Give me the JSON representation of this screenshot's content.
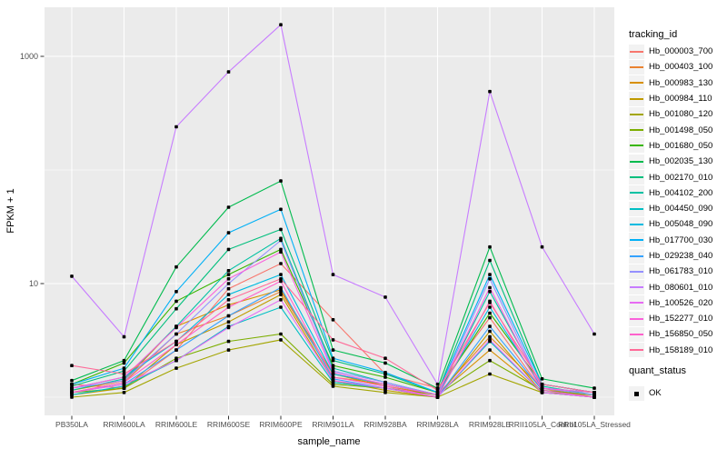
{
  "figure": {
    "background": "#FFFFFF",
    "panel_background": "#EBEBEB",
    "gridline_color": "#FFFFFF",
    "tick_color": "#333333",
    "tick_label_color": "#4D4D4D"
  },
  "axes": {
    "x": {
      "title": "sample_name"
    },
    "y": {
      "title": "FPKM + 1",
      "tick_labels": [
        "1000",
        "10"
      ],
      "scale": "log10"
    }
  },
  "legend": {
    "tracking_title": "tracking_id",
    "quant_title": "quant_status",
    "quant_items": [
      {
        "label": "OK",
        "marker": "black-square"
      }
    ]
  },
  "chart_data": {
    "type": "line",
    "title": "",
    "xlabel": "sample_name",
    "ylabel": "FPKM + 1",
    "yscale": "log10",
    "ylim": [
      0.7,
      2600
    ],
    "y_major_ticks": [
      1000,
      10
    ],
    "y_minor_gridlines": [
      100,
      1
    ],
    "grid": true,
    "legend_position": "right",
    "point_marker": {
      "shape": "square",
      "color": "#000000",
      "label": "OK"
    },
    "categories": [
      "PB350LA",
      "RRIM600LA",
      "RRIM600LE",
      "RRIM600SE",
      "RRIM600PE",
      "RRIM901LA",
      "RRIM928BA",
      "RRIM928LA",
      "RRIM928LE",
      "RRII105LA_Control",
      "RRII105LA_Stressed"
    ],
    "series": [
      {
        "name": "Hb_000003_700",
        "color": "#F8766D",
        "values": [
          1.3,
          1.2,
          2.6,
          9,
          15,
          4.8,
          1.6,
          1.2,
          5,
          1.15,
          1.05
        ]
      },
      {
        "name": "Hb_000403_100",
        "color": "#EA8331",
        "values": [
          1.1,
          1.35,
          3.6,
          5.2,
          8.5,
          1.5,
          1.3,
          1.05,
          3.4,
          1.2,
          1.0
        ]
      },
      {
        "name": "Hb_000983_130",
        "color": "#D89000",
        "values": [
          1.15,
          1.4,
          4.2,
          6.5,
          8.8,
          1.6,
          1.25,
          1.05,
          2.6,
          1.1,
          1.0
        ]
      },
      {
        "name": "Hb_000984_110",
        "color": "#C09B00",
        "values": [
          1.05,
          1.2,
          2.9,
          4.6,
          8.0,
          1.4,
          1.15,
          1.0,
          3.8,
          1.1,
          1.0
        ]
      },
      {
        "name": "Hb_001080_120",
        "color": "#A3A500",
        "values": [
          1.0,
          1.1,
          1.8,
          2.6,
          3.2,
          1.25,
          1.1,
          1.0,
          1.6,
          1.1,
          1.05
        ]
      },
      {
        "name": "Hb_001498_050",
        "color": "#7CAE00",
        "values": [
          1.1,
          1.2,
          2.2,
          3.1,
          3.6,
          1.3,
          1.2,
          1.05,
          2.1,
          1.15,
          1.05
        ]
      },
      {
        "name": "Hb_001680_050",
        "color": "#39B600",
        "values": [
          1.3,
          2.0,
          7,
          12,
          20,
          1.9,
          1.5,
          1.1,
          5.5,
          1.3,
          1.1
        ]
      },
      {
        "name": "Hb_002035_130",
        "color": "#00BB4E",
        "values": [
          1.4,
          2.1,
          14,
          47,
          80,
          2.6,
          2.0,
          1.2,
          21,
          1.45,
          1.2
        ]
      },
      {
        "name": "Hb_002170_010",
        "color": "#00BF7D",
        "values": [
          1.25,
          1.7,
          6,
          20,
          30,
          2.1,
          1.6,
          1.1,
          16,
          1.3,
          1.1
        ]
      },
      {
        "name": "Hb_004102_200",
        "color": "#00C1A3",
        "values": [
          1.15,
          1.45,
          4.2,
          13,
          25,
          1.8,
          1.35,
          1.05,
          8.5,
          1.25,
          1.05
        ]
      },
      {
        "name": "Hb_004450_090",
        "color": "#00BFC4",
        "values": [
          1.05,
          1.25,
          2.1,
          4.2,
          6.2,
          1.35,
          1.2,
          1.0,
          3.1,
          1.1,
          1.0
        ]
      },
      {
        "name": "Hb_005048_090",
        "color": "#00BAE0",
        "values": [
          1.2,
          1.5,
          3.1,
          8,
          12,
          1.6,
          1.3,
          1.05,
          6.2,
          1.2,
          1.1
        ]
      },
      {
        "name": "Hb_017700_030",
        "color": "#00B0F6",
        "values": [
          1.3,
          1.8,
          8.5,
          28,
          45,
          2.2,
          1.65,
          1.1,
          12,
          1.3,
          1.1
        ]
      },
      {
        "name": "Hb_029238_040",
        "color": "#35A2FF",
        "values": [
          1.1,
          1.3,
          2.6,
          5.2,
          9.2,
          1.45,
          1.2,
          1.0,
          4.2,
          1.15,
          1.0
        ]
      },
      {
        "name": "Hb_061783_010",
        "color": "#9590FF",
        "values": [
          1.2,
          1.4,
          3.6,
          10,
          24,
          1.7,
          1.35,
          1.05,
          11,
          1.2,
          1.05
        ]
      },
      {
        "name": "Hb_080601_010",
        "color": "#C77CFF",
        "values": [
          11.6,
          3.4,
          240,
          730,
          1900,
          12,
          7.6,
          1.3,
          490,
          21,
          3.6
        ]
      },
      {
        "name": "Hb_100526_020",
        "color": "#E76BF3",
        "values": [
          1.1,
          1.3,
          2.1,
          4.1,
          7.2,
          1.4,
          1.2,
          1.0,
          3.2,
          1.1,
          1.0
        ]
      },
      {
        "name": "Hb_152277_010",
        "color": "#FA62DB",
        "values": [
          1.2,
          1.5,
          4.1,
          11,
          19,
          1.65,
          1.3,
          1.05,
          9.2,
          1.2,
          1.1
        ]
      },
      {
        "name": "Hb_156850_050",
        "color": "#FF61CC",
        "values": [
          1.1,
          1.35,
          2.9,
          6.2,
          10.5,
          1.5,
          1.25,
          1.0,
          7,
          1.15,
          1.0
        ]
      },
      {
        "name": "Hb_158189_010",
        "color": "#FF6A98",
        "values": [
          1.9,
          1.6,
          3.1,
          7.2,
          11,
          3.2,
          2.2,
          1.15,
          6.8,
          1.3,
          1.1
        ]
      }
    ]
  }
}
